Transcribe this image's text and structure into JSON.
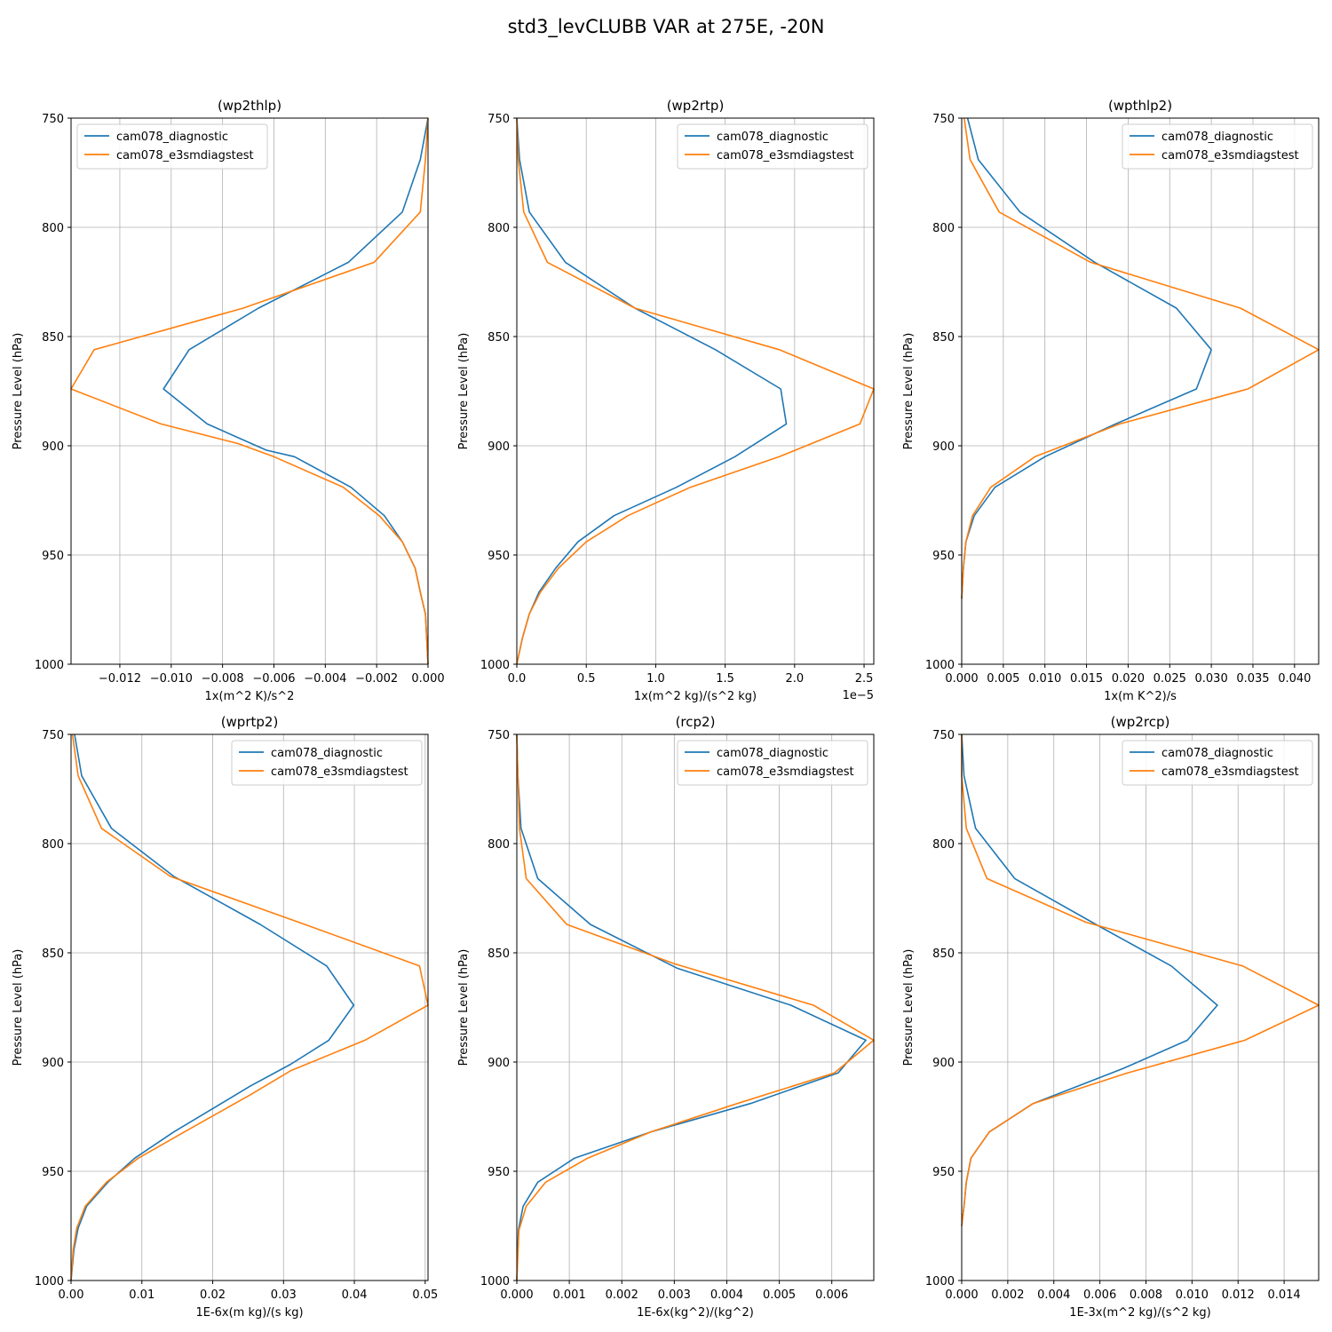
{
  "figure": {
    "title": "std3_levCLUBB VAR at 275E, -20N"
  },
  "colors": {
    "diagnostic": "#1f77b4",
    "e3smdiagstest": "#ff7f0e",
    "grid": "#b0b0b0",
    "axis": "#000000"
  },
  "chart_data": [
    {
      "type": "line",
      "title": "(wp2thlp)",
      "xlabel": "1x(m^2 K)/s^2",
      "ylabel": "Pressure Level (hPa)",
      "xlim": [
        -0.0139,
        0.0
      ],
      "ylim": [
        1000,
        750
      ],
      "y_inverted": true,
      "xticks": [
        -0.012,
        -0.01,
        -0.008,
        -0.006,
        -0.004,
        -0.002,
        0.0
      ],
      "xtick_labels": [
        "−0.012",
        "−0.010",
        "−0.008",
        "−0.006",
        "−0.004",
        "−0.002",
        "0.000"
      ],
      "yticks": [
        750,
        800,
        850,
        900,
        950,
        1000
      ],
      "ytick_labels": [
        "750",
        "800",
        "850",
        "900",
        "950",
        "1000"
      ],
      "offset_label": "",
      "grid": true,
      "legend": {
        "position": "upper-left",
        "entries": [
          "cam078_diagnostic",
          "cam078_e3smdiagstest"
        ]
      },
      "series": [
        {
          "name": "cam078_diagnostic",
          "color": "#1f77b4",
          "x": [
            0.0,
            -0.0003,
            -0.001,
            -0.0031,
            -0.0066,
            -0.0093,
            -0.0103,
            -0.0086,
            -0.0063,
            -0.0052,
            -0.003,
            -0.0017,
            -0.001,
            -0.0005,
            -0.0003,
            -0.0001,
            0.0
          ],
          "y": [
            750,
            769,
            793,
            816,
            837,
            856,
            874,
            890,
            902,
            905,
            919,
            932,
            944,
            956,
            967,
            977,
            1000
          ]
        },
        {
          "name": "cam078_e3smdiagstest",
          "color": "#ff7f0e",
          "x": [
            0.0,
            -0.0001,
            -0.0003,
            -0.0021,
            -0.0072,
            -0.013,
            -0.0139,
            -0.0104,
            -0.0074,
            -0.006,
            -0.0033,
            -0.0019,
            -0.001,
            -0.0005,
            -0.0003,
            -0.0001,
            0.0
          ],
          "y": [
            750,
            769,
            793,
            816,
            837,
            856,
            874,
            890,
            899,
            905,
            919,
            932,
            944,
            956,
            967,
            977,
            1000
          ]
        }
      ]
    },
    {
      "type": "line",
      "title": "(wp2rtp)",
      "xlabel": "1x(m^2 kg)/(s^2 kg)",
      "ylabel": "Pressure Level (hPa)",
      "xlim": [
        0.0,
        2.57
      ],
      "ylim": [
        1000,
        750
      ],
      "y_inverted": true,
      "xticks": [
        0.0,
        0.5,
        1.0,
        1.5,
        2.0,
        2.5
      ],
      "xtick_labels": [
        "0.0",
        "0.5",
        "1.0",
        "1.5",
        "2.0",
        "2.5"
      ],
      "yticks": [
        750,
        800,
        850,
        900,
        950,
        1000
      ],
      "ytick_labels": [
        "750",
        "800",
        "850",
        "900",
        "950",
        "1000"
      ],
      "offset_label": "1e−5",
      "grid": true,
      "legend": {
        "position": "upper-right",
        "entries": [
          "cam078_diagnostic",
          "cam078_e3smdiagstest"
        ]
      },
      "series": [
        {
          "name": "cam078_diagnostic",
          "color": "#1f77b4",
          "x": [
            0.0,
            0.02,
            0.09,
            0.35,
            0.85,
            1.43,
            1.9,
            1.94,
            1.57,
            1.15,
            0.7,
            0.44,
            0.28,
            0.16,
            0.09,
            0.04,
            0.0
          ],
          "y": [
            750,
            769,
            793,
            816,
            837,
            856,
            874,
            890,
            905,
            919,
            932,
            944,
            956,
            967,
            977,
            988,
            1000
          ]
        },
        {
          "name": "cam078_e3smdiagstest",
          "color": "#ff7f0e",
          "x": [
            0.0,
            0.01,
            0.05,
            0.22,
            0.85,
            1.89,
            2.57,
            2.47,
            1.89,
            1.25,
            0.8,
            0.5,
            0.3,
            0.17,
            0.09,
            0.04,
            0.0
          ],
          "y": [
            750,
            769,
            793,
            816,
            837,
            856,
            874,
            890,
            905,
            919,
            932,
            944,
            956,
            967,
            977,
            988,
            1000
          ]
        }
      ]
    },
    {
      "type": "line",
      "title": "(wpthlp2)",
      "xlabel": "1x(m K^2)/s",
      "ylabel": "Pressure Level (hPa)",
      "xlim": [
        0.0,
        0.0429
      ],
      "ylim": [
        1000,
        750
      ],
      "y_inverted": true,
      "xticks": [
        0.0,
        0.005,
        0.01,
        0.015,
        0.02,
        0.025,
        0.03,
        0.035,
        0.04
      ],
      "xtick_labels": [
        "0.000",
        "0.005",
        "0.010",
        "0.015",
        "0.020",
        "0.025",
        "0.030",
        "0.035",
        "0.040"
      ],
      "yticks": [
        750,
        800,
        850,
        900,
        950,
        1000
      ],
      "ytick_labels": [
        "750",
        "800",
        "850",
        "900",
        "950",
        "1000"
      ],
      "offset_label": "",
      "grid": true,
      "legend": {
        "position": "upper-right",
        "entries": [
          "cam078_diagnostic",
          "cam078_e3smdiagstest"
        ]
      },
      "series": [
        {
          "name": "cam078_diagnostic",
          "color": "#1f77b4",
          "x": [
            0.0007,
            0.002,
            0.007,
            0.016,
            0.0258,
            0.03,
            0.0282,
            0.0185,
            0.01,
            0.004,
            0.0015,
            0.0005,
            0.0002,
            0.0
          ],
          "y": [
            750,
            769,
            793,
            816,
            837,
            856,
            874,
            890,
            905,
            919,
            932,
            944,
            956,
            970
          ]
        },
        {
          "name": "cam078_e3smdiagstest",
          "color": "#ff7f0e",
          "x": [
            0.0003,
            0.001,
            0.0045,
            0.0155,
            0.0335,
            0.0429,
            0.0344,
            0.019,
            0.0088,
            0.0035,
            0.0013,
            0.0005,
            0.0002,
            0.0
          ],
          "y": [
            750,
            769,
            793,
            816,
            837,
            856,
            874,
            890,
            905,
            919,
            932,
            944,
            956,
            970
          ]
        }
      ]
    },
    {
      "type": "line",
      "title": "(wprtp2)",
      "xlabel": "1E-6x(m kg)/(s kg)",
      "ylabel": "Pressure Level (hPa)",
      "xlim": [
        0.0,
        0.0504
      ],
      "ylim": [
        1000,
        750
      ],
      "y_inverted": true,
      "xticks": [
        0.0,
        0.01,
        0.02,
        0.03,
        0.04,
        0.05
      ],
      "xtick_labels": [
        "0.00",
        "0.01",
        "0.02",
        "0.03",
        "0.04",
        "0.05"
      ],
      "yticks": [
        750,
        800,
        850,
        900,
        950,
        1000
      ],
      "ytick_labels": [
        "750",
        "800",
        "850",
        "900",
        "950",
        "1000"
      ],
      "offset_label": "",
      "grid": true,
      "legend": {
        "position": "upper-right",
        "entries": [
          "cam078_diagnostic",
          "cam078_e3smdiagstest"
        ]
      },
      "series": [
        {
          "name": "cam078_diagnostic",
          "color": "#1f77b4",
          "x": [
            0.0005,
            0.0015,
            0.0057,
            0.0145,
            0.0267,
            0.0361,
            0.0399,
            0.0364,
            0.031,
            0.0253,
            0.0145,
            0.009,
            0.0052,
            0.0022,
            0.001,
            0.0004,
            0.0
          ],
          "y": [
            750,
            769,
            793,
            815,
            837,
            856,
            874,
            890,
            901,
            911,
            932,
            944,
            955,
            966,
            976,
            986,
            1000
          ]
        },
        {
          "name": "cam078_e3smdiagstest",
          "color": "#ff7f0e",
          "x": [
            0.0002,
            0.001,
            0.0043,
            0.014,
            0.033,
            0.0492,
            0.0504,
            0.0415,
            0.031,
            0.0253,
            0.016,
            0.0095,
            0.005,
            0.002,
            0.0008,
            0.0003,
            0.0
          ],
          "y": [
            750,
            769,
            793,
            815,
            837,
            856,
            874,
            890,
            904,
            915,
            932,
            944,
            955,
            966,
            976,
            986,
            1000
          ]
        }
      ]
    },
    {
      "type": "line",
      "title": "(rcp2)",
      "xlabel": "1E-6x(kg^2)/(kg^2)",
      "ylabel": "Pressure Level (hPa)",
      "xlim": [
        0.0,
        0.0068
      ],
      "ylim": [
        1000,
        750
      ],
      "y_inverted": true,
      "xticks": [
        0.0,
        0.001,
        0.002,
        0.003,
        0.004,
        0.005,
        0.006
      ],
      "xtick_labels": [
        "0.000",
        "0.001",
        "0.002",
        "0.003",
        "0.004",
        "0.005",
        "0.006"
      ],
      "yticks": [
        750,
        800,
        850,
        900,
        950,
        1000
      ],
      "ytick_labels": [
        "750",
        "800",
        "850",
        "900",
        "950",
        "1000"
      ],
      "offset_label": "",
      "grid": true,
      "legend": {
        "position": "upper-right",
        "entries": [
          "cam078_diagnostic",
          "cam078_e3smdiagstest"
        ]
      },
      "series": [
        {
          "name": "cam078_diagnostic",
          "color": "#1f77b4",
          "x": [
            0.0,
            2e-05,
            8e-05,
            0.0004,
            0.0014,
            0.00305,
            0.00522,
            0.00665,
            0.00612,
            0.00445,
            0.00255,
            0.0011,
            0.0004,
            0.00012,
            3e-05,
            0.0
          ],
          "y": [
            750,
            769,
            793,
            816,
            837,
            857,
            874,
            890,
            905,
            919,
            932,
            944,
            955,
            966,
            977,
            1000
          ]
        },
        {
          "name": "cam078_e3smdiagstest",
          "color": "#ff7f0e",
          "x": [
            0.0,
            2e-05,
            5e-05,
            0.00018,
            0.00095,
            0.003,
            0.00565,
            0.0068,
            0.00605,
            0.0042,
            0.00255,
            0.00135,
            0.00055,
            0.00018,
            4e-05,
            0.0
          ],
          "y": [
            750,
            769,
            793,
            816,
            837,
            855,
            874,
            890,
            905,
            919,
            932,
            944,
            955,
            966,
            977,
            1000
          ]
        }
      ]
    },
    {
      "type": "line",
      "title": "(wp2rcp)",
      "xlabel": "1E-3x(m^2 kg)/(s^2 kg)",
      "ylabel": "Pressure Level (hPa)",
      "xlim": [
        0.0,
        0.0155
      ],
      "ylim": [
        1000,
        750
      ],
      "y_inverted": true,
      "xticks": [
        0.0,
        0.002,
        0.004,
        0.006,
        0.008,
        0.01,
        0.012,
        0.014
      ],
      "xtick_labels": [
        "0.000",
        "0.002",
        "0.004",
        "0.006",
        "0.008",
        "0.010",
        "0.012",
        "0.014"
      ],
      "yticks": [
        750,
        800,
        850,
        900,
        950,
        1000
      ],
      "ytick_labels": [
        "750",
        "800",
        "850",
        "900",
        "950",
        "1000"
      ],
      "offset_label": "",
      "grid": true,
      "legend": {
        "position": "upper-right",
        "entries": [
          "cam078_diagnostic",
          "cam078_e3smdiagstest"
        ]
      },
      "series": [
        {
          "name": "cam078_diagnostic",
          "color": "#1f77b4",
          "x": [
            0.0,
            0.0001,
            0.0006,
            0.0023,
            0.006,
            0.0091,
            0.0111,
            0.0098,
            0.007,
            0.0031,
            0.0012,
            0.0004,
            0.0002,
            0.0001,
            0.0
          ],
          "y": [
            750,
            769,
            793,
            816,
            838,
            856,
            874,
            890,
            903,
            919,
            932,
            944,
            955,
            966,
            975
          ]
        },
        {
          "name": "cam078_e3smdiagstest",
          "color": "#ff7f0e",
          "x": [
            0.0,
            0.0,
            0.0002,
            0.0011,
            0.0054,
            0.0122,
            0.0155,
            0.0123,
            0.0072,
            0.0031,
            0.0012,
            0.0004,
            0.0002,
            0.0001,
            0.0
          ],
          "y": [
            750,
            769,
            793,
            816,
            836,
            856,
            874,
            890,
            905,
            919,
            932,
            944,
            955,
            966,
            975
          ]
        }
      ]
    }
  ]
}
